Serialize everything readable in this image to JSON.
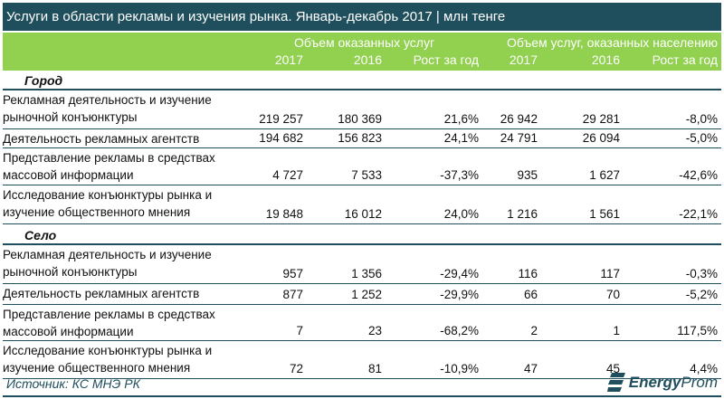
{
  "title": "Услуги в области  рекламы и изучения рынка. Январь-декабрь 2017 | млн тенге",
  "header": {
    "group1": "Объем оказанных услуг",
    "group2": "Объем услуг, оказанных населению",
    "cols": [
      "2017",
      "2016",
      "Рост за год",
      "2017",
      "2016",
      "Рост за год"
    ]
  },
  "groups": [
    {
      "label": "Город",
      "rows": [
        {
          "name": "Рекламная деятельность и изучение рыночной конъюнктуры",
          "values": [
            "219 257",
            "180 369",
            "21,6%",
            "26 942",
            "29 281",
            "-8,0%"
          ]
        },
        {
          "name": "Деятельность рекламных агентств",
          "values": [
            "194 682",
            "156 823",
            "24,1%",
            "24 791",
            "26 094",
            "-5,0%"
          ]
        },
        {
          "name": "Представление рекламы в средствах массовой информации",
          "values": [
            "4 727",
            "7 533",
            "-37,3%",
            "935",
            "1 627",
            "-42,6%"
          ]
        },
        {
          "name": "Исследование конъюнктуры рынка и изучение общественного мнения",
          "values": [
            "19 848",
            "16 012",
            "24,0%",
            "1 216",
            "1 561",
            "-22,1%"
          ]
        }
      ]
    },
    {
      "label": "Село",
      "rows": [
        {
          "name": "Рекламная деятельность и изучение рыночной конъюнктуры",
          "values": [
            "957",
            "1 356",
            "-29,4%",
            "116",
            "117",
            "-0,3%"
          ]
        },
        {
          "name": "Деятельность рекламных агентств",
          "values": [
            "877",
            "1 252",
            "-29,9%",
            "66",
            "70",
            "-5,2%"
          ]
        },
        {
          "name": "Представление рекламы в средствах массовой информации",
          "values": [
            "7",
            "23",
            "-68,2%",
            "2",
            "1",
            "117,5%"
          ]
        },
        {
          "name": "Исследование конъюнктуры рынка и изучение общественного мнения",
          "values": [
            "72",
            "81",
            "-10,9%",
            "47",
            "45",
            "4,4%"
          ]
        }
      ]
    }
  ],
  "footer": {
    "source": "Источник: КС МНЭ РК",
    "logo_energy": "Energy",
    "logo_prom": "Prom"
  },
  "colors": {
    "title_bg": "#1f4e5c",
    "header_bg": "#92d050"
  }
}
